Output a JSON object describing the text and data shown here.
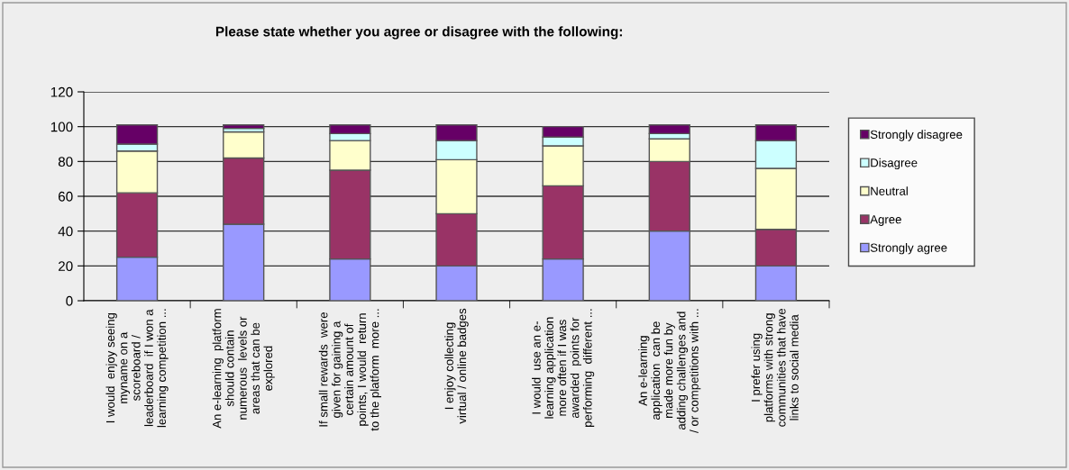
{
  "chart_data": {
    "type": "bar",
    "stacked": true,
    "title": "Please state whether you agree or disagree with the following:",
    "categories": [
      "I would  enjoy seeing\nmyname on a\nscoreboard /\nleaderboard  if I won a\nlearning competition ...",
      "An e-learning  platform\nshould contain\nnumerous  levels or\nareas that can be\nexplored",
      "If small rewards  were\ngiven for gaining a\ncertain amount of\npoints, I would  return\nto the platform  more ...",
      "I enjoy collecting\nvirtual / online badges",
      "I would  use an e-\nlearning application\nmore often if I was\nawarded  points for\nperforming  different ...",
      "An e-learning\napplication  can be\nmade more fun by\nadding challenges and\n/ or competitions with ...",
      "I prefer using\nplatforms with strong\ncommunities that have\nlinks to social media"
    ],
    "series": [
      {
        "name": "Strongly agree",
        "color": "#9999ff",
        "values": [
          25,
          44,
          24,
          20,
          24,
          40,
          20
        ]
      },
      {
        "name": "Agree",
        "color": "#993366",
        "values": [
          37,
          38,
          51,
          30,
          42,
          40,
          21
        ]
      },
      {
        "name": "Neutral",
        "color": "#ffffcc",
        "values": [
          24,
          15,
          17,
          31,
          23,
          13,
          35
        ]
      },
      {
        "name": "Disagree",
        "color": "#ccffff",
        "values": [
          4,
          2,
          4,
          11,
          5,
          3,
          16
        ]
      },
      {
        "name": "Strongly disagree",
        "color": "#660066",
        "values": [
          11,
          2,
          5,
          9,
          6,
          5,
          9
        ]
      }
    ],
    "ylim": [
      0,
      120
    ],
    "yticks": [
      0,
      20,
      40,
      60,
      80,
      100,
      120
    ],
    "grid": "y",
    "legend": "right"
  }
}
